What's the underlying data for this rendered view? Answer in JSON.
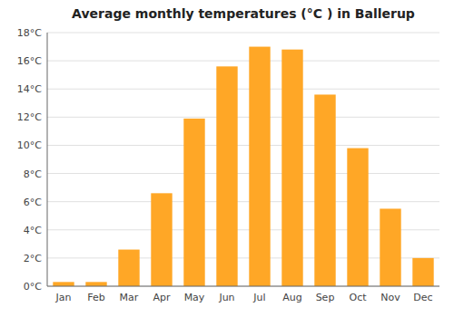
{
  "chart_data": {
    "type": "bar",
    "title": "Average monthly temperatures (°C ) in Ballerup",
    "categories": [
      "Jan",
      "Feb",
      "Mar",
      "Apr",
      "May",
      "Jun",
      "Jul",
      "Aug",
      "Sep",
      "Oct",
      "Nov",
      "Dec"
    ],
    "values": [
      0.3,
      0.3,
      2.6,
      6.6,
      11.9,
      15.6,
      17.0,
      16.8,
      13.6,
      9.8,
      5.5,
      2.0
    ],
    "color": "#FFA726",
    "ylim": [
      0,
      18
    ],
    "yticks": [
      {
        "value": 0,
        "label": "0°C"
      },
      {
        "value": 2,
        "label": "2°C"
      },
      {
        "value": 4,
        "label": "4°C"
      },
      {
        "value": 6,
        "label": "6°C"
      },
      {
        "value": 8,
        "label": "8°C"
      },
      {
        "value": 10,
        "label": "10°C"
      },
      {
        "value": 12,
        "label": "12°C"
      },
      {
        "value": 14,
        "label": "14°C"
      },
      {
        "value": 16,
        "label": "16°C"
      },
      {
        "value": 18,
        "label": "18°C"
      }
    ],
    "grid": true
  }
}
